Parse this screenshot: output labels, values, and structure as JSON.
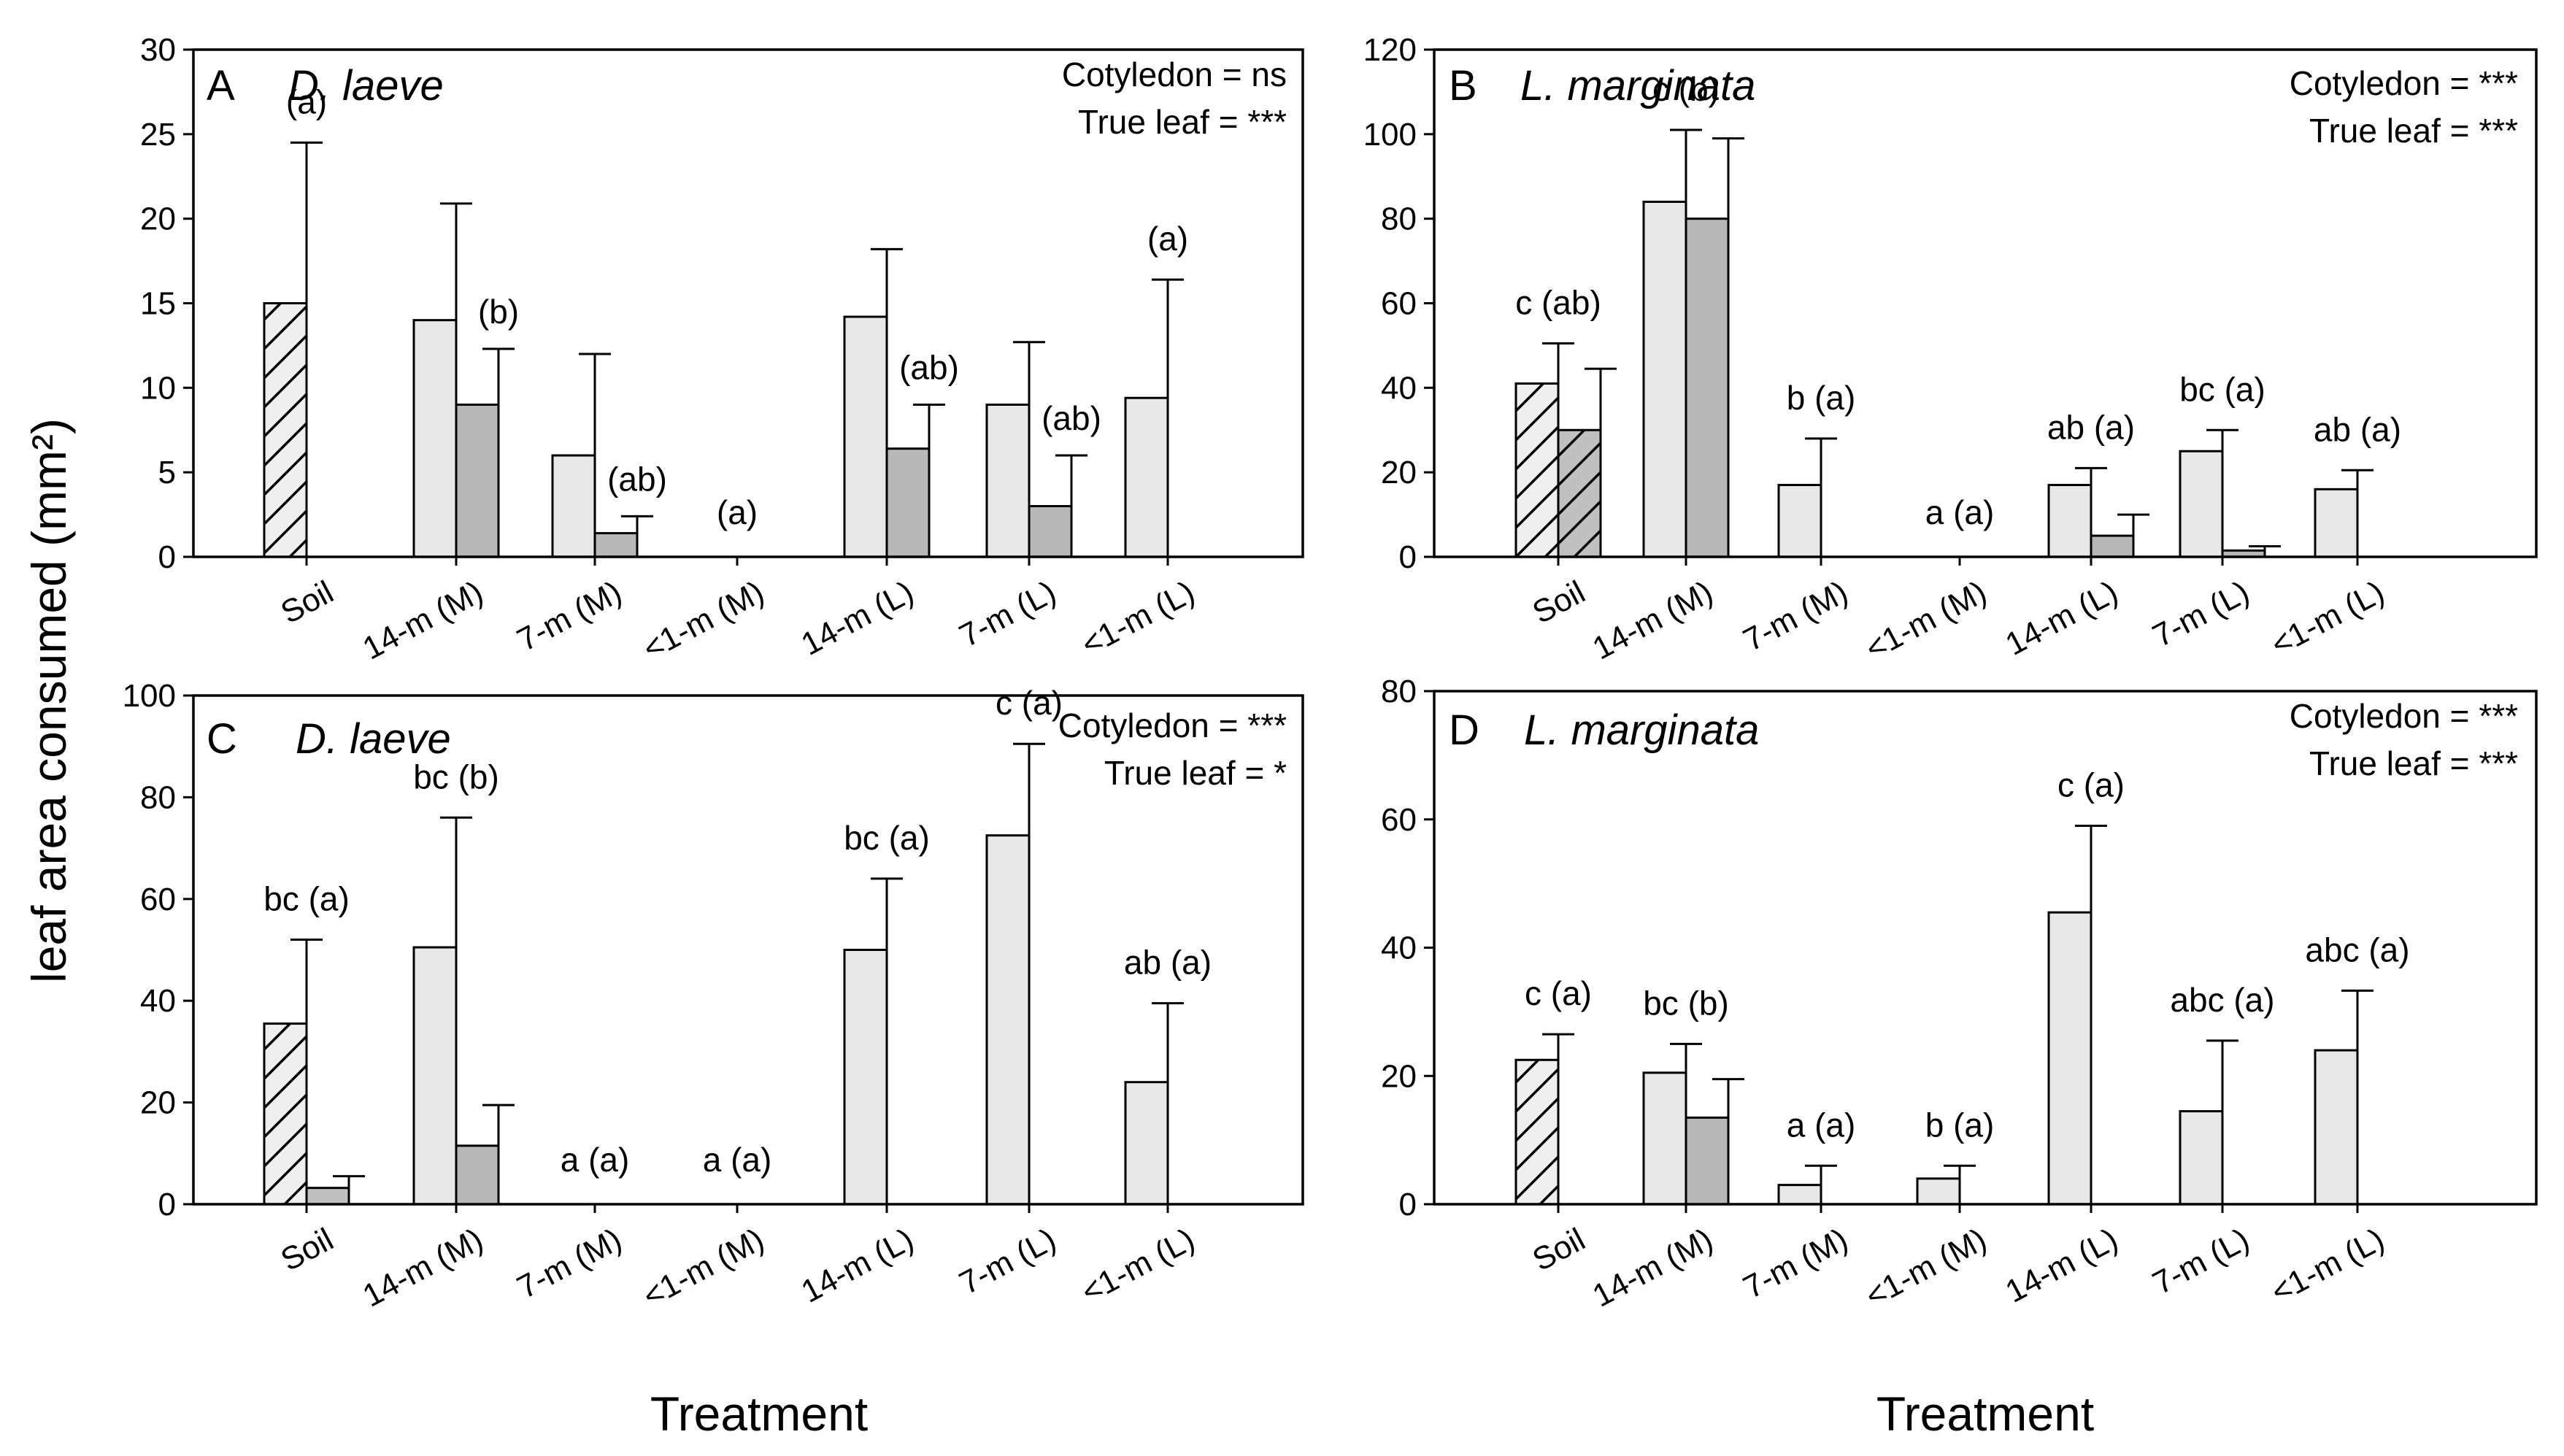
{
  "figure": {
    "ylabel": "leaf area consumed (mm²)",
    "xlabels": [
      "Treatment",
      "Treatment"
    ]
  },
  "chart_data": [
    {
      "type": "bar",
      "panel_letter": "A",
      "species": "D. laeve",
      "stats": [
        "Cotyledon = ns",
        "True leaf = ***"
      ],
      "categories": [
        "Soil",
        "14-m (M)",
        "7-m (M)",
        "<1-m (M)",
        "14-m (L)",
        "7-m (L)",
        "<1-m (L)"
      ],
      "ylim": [
        0,
        30
      ],
      "yticks": [
        0,
        5,
        10,
        15,
        20,
        25,
        30
      ],
      "series": [
        {
          "name": "Cotyledon",
          "values": [
            15,
            14,
            6,
            0,
            14.2,
            9,
            9.4
          ],
          "errors": [
            9.5,
            6.9,
            6,
            0,
            4,
            3.7,
            7
          ]
        },
        {
          "name": "True leaf",
          "values": [
            0,
            9,
            1.4,
            0,
            6.4,
            3,
            0
          ],
          "errors": [
            0,
            3.3,
            1,
            0,
            2.6,
            3,
            0
          ]
        }
      ],
      "annotations": [
        "(a)",
        "(b)",
        "(ab)",
        "(a)",
        "(ab)",
        "(ab)",
        "(a)"
      ]
    },
    {
      "type": "bar",
      "panel_letter": "B",
      "species": "L. marginata",
      "stats": [
        "Cotyledon = ***",
        "True leaf = ***"
      ],
      "categories": [
        "Soil",
        "14-m (M)",
        "7-m (M)",
        "<1-m (M)",
        "14-m (L)",
        "7-m (L)",
        "<1-m (L)"
      ],
      "ylim": [
        0,
        120
      ],
      "yticks": [
        0,
        20,
        40,
        60,
        80,
        100,
        120
      ],
      "series": [
        {
          "name": "Cotyledon",
          "values": [
            41,
            84,
            17,
            0,
            17,
            25,
            16
          ],
          "errors": [
            9.5,
            17,
            11,
            0,
            4,
            5,
            4.5
          ]
        },
        {
          "name": "True leaf",
          "values": [
            30,
            80,
            0,
            0,
            5,
            1.5,
            0
          ],
          "errors": [
            14.5,
            19,
            0,
            0,
            5,
            1,
            0
          ]
        }
      ],
      "annotations": [
        "c (ab)",
        "c (b)",
        "b (a)",
        "a (a)",
        "ab (a)",
        "bc (a)",
        "ab (a)"
      ]
    },
    {
      "type": "bar",
      "panel_letter": "C",
      "species": "D. laeve",
      "stats": [
        "Cotyledon = ***",
        "True leaf = *"
      ],
      "categories": [
        "Soil",
        "14-m (M)",
        "7-m (M)",
        "<1-m (M)",
        "14-m (L)",
        "7-m (L)",
        "<1-m (L)"
      ],
      "ylim": [
        0,
        100
      ],
      "yticks": [
        0,
        20,
        40,
        60,
        80,
        100
      ],
      "series": [
        {
          "name": "Cotyledon",
          "values": [
            35.5,
            50.5,
            0,
            0,
            50,
            72.5,
            24
          ],
          "errors": [
            16.5,
            25.5,
            0,
            0,
            14,
            18,
            15.5
          ]
        },
        {
          "name": "True leaf",
          "values": [
            3.2,
            11.5,
            0,
            0,
            0,
            0,
            0
          ],
          "errors": [
            2.3,
            8,
            0,
            0,
            0,
            0,
            0
          ]
        }
      ],
      "annotations": [
        "bc (a)",
        "bc (b)",
        "a (a)",
        "a (a)",
        "bc (a)",
        "c (a)",
        "ab (a)"
      ]
    },
    {
      "type": "bar",
      "panel_letter": "D",
      "species": "L. marginata",
      "stats": [
        "Cotyledon = ***",
        "True leaf = ***"
      ],
      "categories": [
        "Soil",
        "14-m (M)",
        "7-m (M)",
        "<1-m (M)",
        "14-m (L)",
        "7-m (L)",
        "<1-m (L)"
      ],
      "ylim": [
        0,
        80
      ],
      "yticks": [
        0,
        20,
        40,
        60,
        80
      ],
      "series": [
        {
          "name": "Cotyledon",
          "values": [
            22.5,
            20.5,
            3,
            4,
            45.5,
            14.5,
            24
          ],
          "errors": [
            4,
            4.5,
            3,
            2,
            13.5,
            11,
            9.3
          ]
        },
        {
          "name": "True leaf",
          "values": [
            0,
            13.5,
            0,
            0,
            0,
            0,
            0
          ],
          "errors": [
            0,
            6,
            0,
            0,
            0,
            0,
            0
          ]
        }
      ],
      "annotations": [
        "c (a)",
        "bc (b)",
        "a (a)",
        "b (a)",
        "c (a)",
        "abc (a)",
        "abc (a)"
      ]
    }
  ]
}
